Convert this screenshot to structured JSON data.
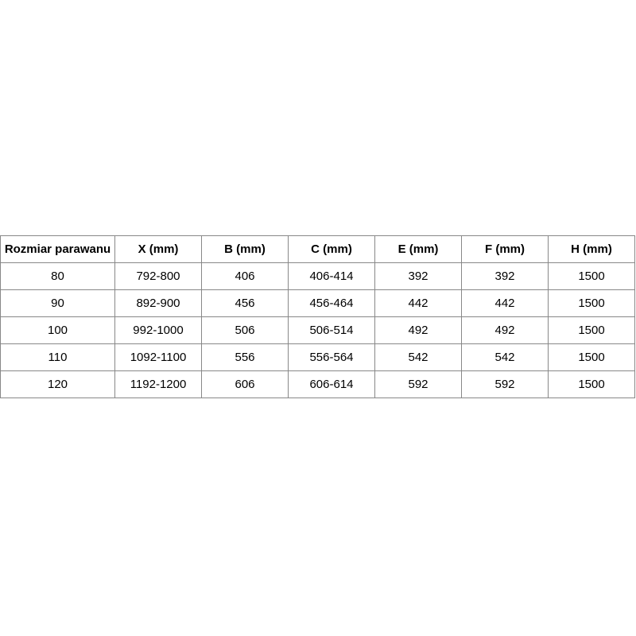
{
  "table": {
    "headers": [
      "Rozmiar parawanu",
      "X (mm)",
      "B (mm)",
      "C (mm)",
      "E (mm)",
      "F (mm)",
      "H (mm)"
    ],
    "rows": [
      [
        "80",
        "792-800",
        "406",
        "406-414",
        "392",
        "392",
        "1500"
      ],
      [
        "90",
        "892-900",
        "456",
        "456-464",
        "442",
        "442",
        "1500"
      ],
      [
        "100",
        "992-1000",
        "506",
        "506-514",
        "492",
        "492",
        "1500"
      ],
      [
        "110",
        "1092-1100",
        "556",
        "556-564",
        "542",
        "542",
        "1500"
      ],
      [
        "120",
        "1192-1200",
        "606",
        "606-614",
        "592",
        "592",
        "1500"
      ]
    ]
  }
}
